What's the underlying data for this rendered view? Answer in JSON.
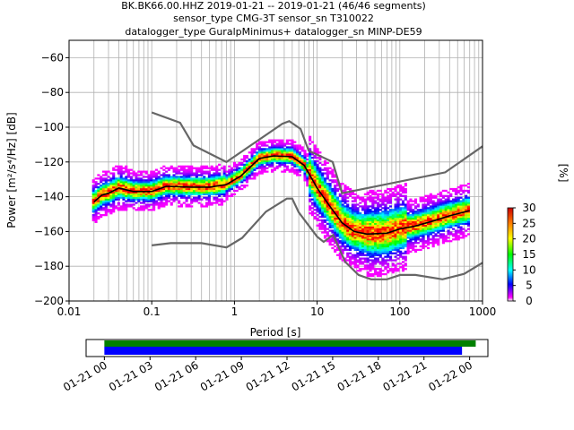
{
  "chart_data": {
    "type": "heatmap",
    "title_lines": [
      "BK.BK66.00.HHZ   2019-01-21 -- 2019-01-21  (46/46 segments)",
      "sensor_type CMG-3T sensor_sn T310022",
      "datalogger_type GuralpMinimus+ datalogger_sn MINP-DE59"
    ],
    "xlabel": "Period [s]",
    "ylabel": "Power [m²/s⁴/Hz] [dB]",
    "x_scale": "log",
    "xlim": [
      0.01,
      1000
    ],
    "ylim": [
      -200,
      -50
    ],
    "x_ticks": [
      0.01,
      0.1,
      1,
      10,
      100,
      1000
    ],
    "x_tick_labels": [
      "0.01",
      "0.1",
      "1",
      "10",
      "100",
      "1000"
    ],
    "y_ticks": [
      -200,
      -180,
      -160,
      -140,
      -120,
      -100,
      -80,
      -60
    ],
    "y_tick_labels": [
      "−200",
      "−180",
      "−160",
      "−140",
      "−120",
      "−100",
      "−80",
      "−60"
    ],
    "grid": true,
    "noise_models": [
      {
        "name": "high",
        "points": [
          [
            0.1,
            -91.5
          ],
          [
            0.22,
            -97.4
          ],
          [
            0.32,
            -110.5
          ],
          [
            0.8,
            -120
          ],
          [
            3.8,
            -98
          ],
          [
            4.6,
            -96.5
          ],
          [
            6.3,
            -101
          ],
          [
            7.9,
            -113.5
          ],
          [
            15.4,
            -120
          ],
          [
            20,
            -138
          ],
          [
            354,
            -126
          ],
          [
            1000,
            -111
          ]
        ]
      },
      {
        "name": "low",
        "points": [
          [
            0.1,
            -168
          ],
          [
            0.17,
            -166.7
          ],
          [
            0.4,
            -166.7
          ],
          [
            0.8,
            -169.2
          ],
          [
            1.24,
            -163.7
          ],
          [
            2.4,
            -148.6
          ],
          [
            4.3,
            -141.1
          ],
          [
            5,
            -141.1
          ],
          [
            6,
            -149
          ],
          [
            10,
            -163
          ],
          [
            12,
            -166
          ],
          [
            15.6,
            -162
          ],
          [
            21.9,
            -177.5
          ],
          [
            31.6,
            -185
          ],
          [
            45,
            -187.5
          ],
          [
            70,
            -187.5
          ],
          [
            101,
            -185
          ],
          [
            154,
            -185
          ],
          [
            328,
            -187.5
          ],
          [
            600,
            -184.4
          ],
          [
            1000,
            -178
          ]
        ]
      }
    ],
    "mode_line": [
      [
        0.02,
        -143
      ],
      [
        0.025,
        -139
      ],
      [
        0.03,
        -138
      ],
      [
        0.04,
        -135
      ],
      [
        0.06,
        -137
      ],
      [
        0.1,
        -137
      ],
      [
        0.15,
        -134
      ],
      [
        0.3,
        -134.5
      ],
      [
        0.5,
        -134.5
      ],
      [
        0.8,
        -133
      ],
      [
        1.2,
        -128
      ],
      [
        2,
        -118
      ],
      [
        3,
        -116.5
      ],
      [
        5,
        -117
      ],
      [
        7,
        -122
      ],
      [
        10,
        -135
      ],
      [
        14,
        -145
      ],
      [
        20,
        -155
      ],
      [
        28,
        -160
      ],
      [
        40,
        -161.5
      ],
      [
        70,
        -161
      ],
      [
        100,
        -158.5
      ],
      [
        150,
        -157
      ],
      [
        250,
        -154
      ],
      [
        400,
        -151
      ],
      [
        700,
        -148
      ]
    ],
    "colorbar": {
      "label": "[%]",
      "min": 0,
      "max": 30,
      "ticks": [
        0,
        5,
        10,
        15,
        20,
        25,
        30
      ]
    },
    "coverage": {
      "ticks": [
        "01-21 00",
        "01-21 03",
        "01-21 06",
        "01-21 09",
        "01-21 12",
        "01-21 15",
        "01-21 18",
        "01-21 21",
        "01-22 00"
      ],
      "bars": [
        {
          "color": "#008000",
          "start_hours": 0,
          "end_hours": 24.4
        },
        {
          "color": "#0000ff",
          "start_hours": 0,
          "end_hours": 23.5
        }
      ],
      "xlim_hours": [
        -1.2,
        25.2
      ]
    }
  }
}
